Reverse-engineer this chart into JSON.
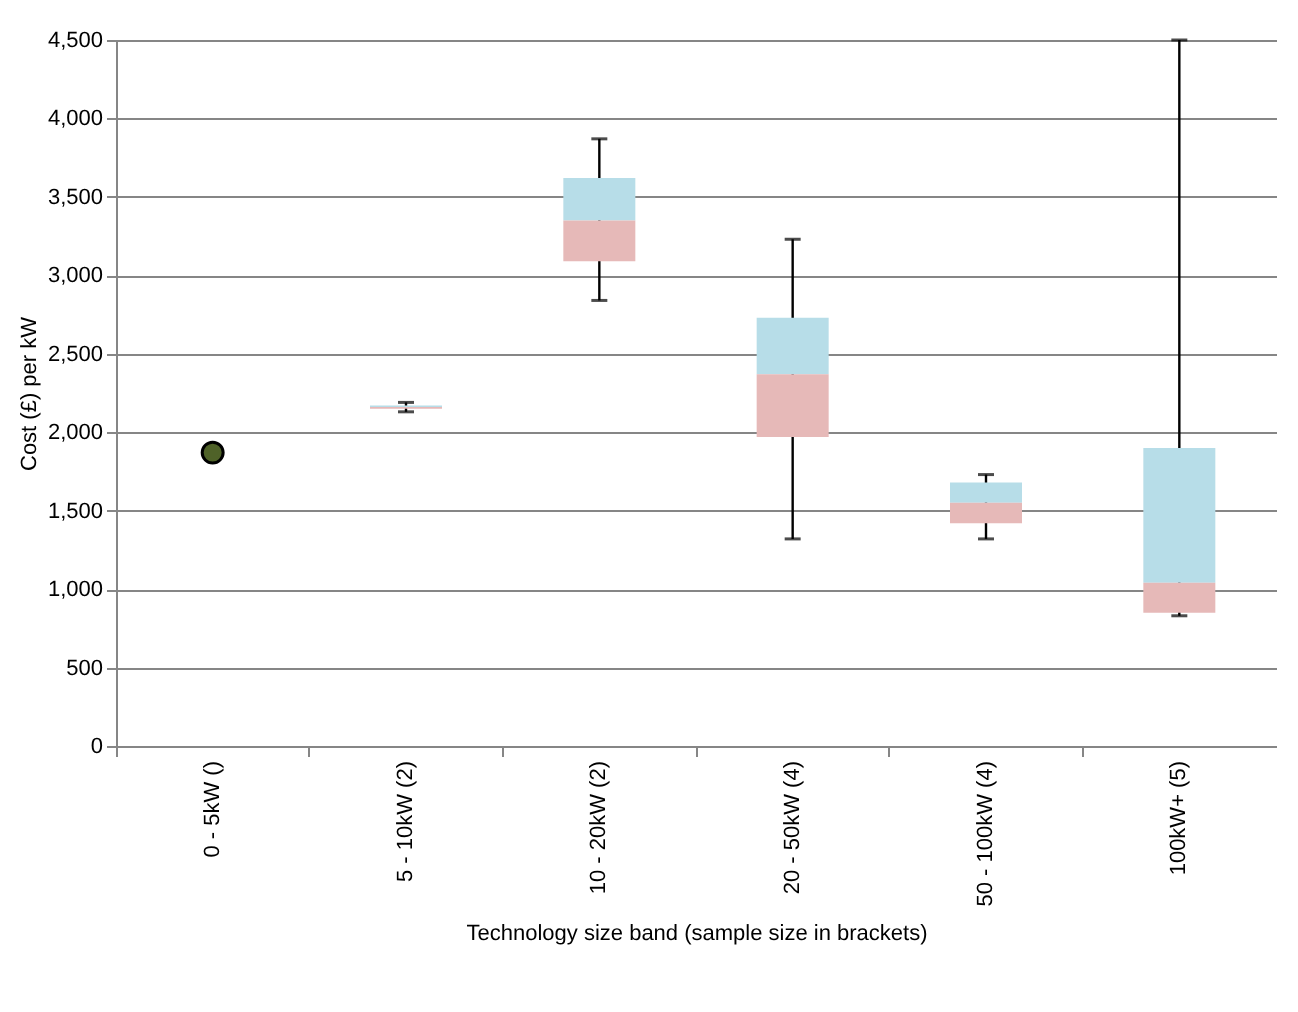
{
  "chart_data": {
    "type": "box",
    "xlabel": "Technology size band (sample size in brackets)",
    "ylabel": "Cost (£) per kW",
    "categories": [
      "0 - 5kW ()",
      "5 - 10kW (2)",
      "10 - 20kW (2)",
      "20 - 50kW (4)",
      "50 - 100kW (4)",
      "100kW+ (5)"
    ],
    "series": [
      {
        "type": "box",
        "color": "#b7dde8",
        "colors": [
          null,
          "#e6b9b8",
          "#e6b9b8",
          "#e6b9b8",
          "#e6b9b8",
          "#e6b9b8"
        ],
        "boxes": [
          null,
          {
            "low": 2130,
            "q1": 2150,
            "median": 2160,
            "q3": 2170,
            "high": 2190
          },
          {
            "low": 2840,
            "q1": 3090,
            "median": 3350,
            "q3": 3620,
            "high": 3870
          },
          {
            "low": 1320,
            "q1": 1970,
            "median": 2370,
            "q3": 2730,
            "high": 3230
          },
          {
            "low": 1320,
            "q1": 1420,
            "median": 1550,
            "q3": 1680,
            "high": 1730
          },
          {
            "low": 830,
            "q1": 850,
            "median": 1040,
            "q3": 1900,
            "high": 4500
          }
        ]
      },
      {
        "type": "scatter",
        "x": [
          "0 - 5kW ()"
        ],
        "values": [
          1870
        ],
        "color": "#4f6228",
        "marker": "circle"
      }
    ],
    "ylim": [
      0,
      4500
    ],
    "yticks": [
      0,
      500,
      {
        "value": 1000,
        "label": "1,000"
      },
      {
        "value": 1500,
        "label": "1,500"
      },
      {
        "value": 2000,
        "label": "2,000"
      },
      {
        "value": 2500,
        "label": "2,500"
      },
      {
        "value": 3000,
        "label": "3,000"
      },
      {
        "value": 3500,
        "label": "3,500"
      },
      {
        "value": 4000,
        "label": "4,000"
      },
      {
        "value": 4500,
        "label": "4,500"
      }
    ],
    "grid": "y"
  }
}
